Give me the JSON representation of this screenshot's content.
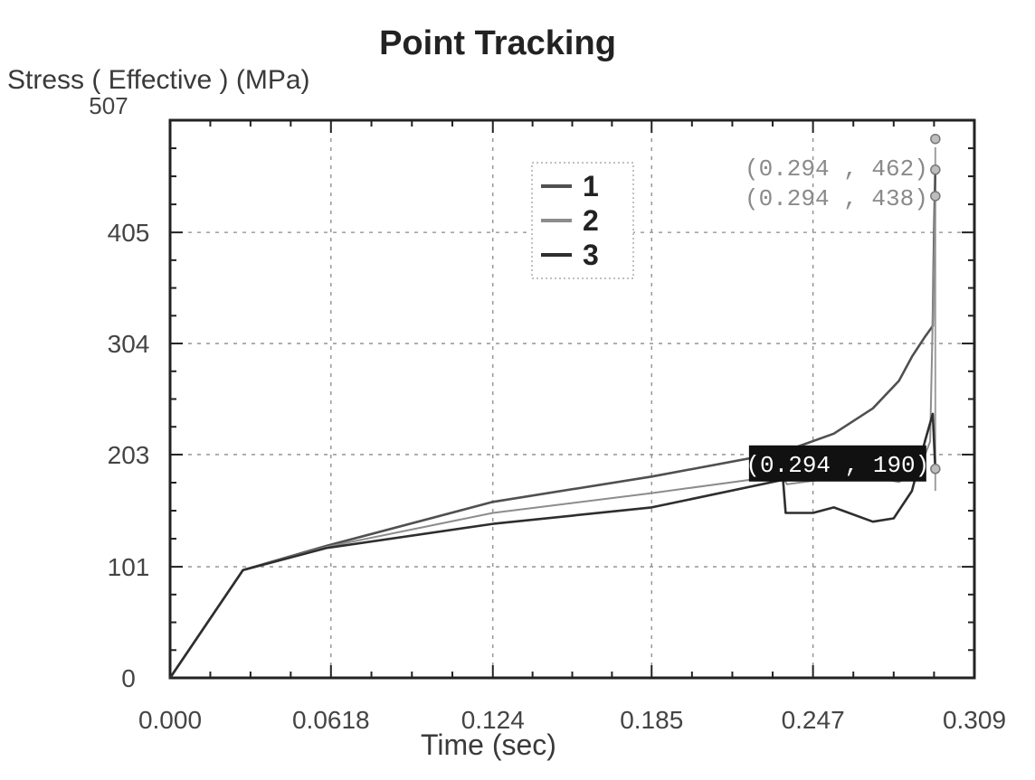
{
  "chart_data": {
    "type": "line",
    "title": "Point Tracking",
    "ylabel": "Stress ( Effective ) (MPa)",
    "xlabel": "Time (sec)",
    "xlim": [
      0.0,
      0.309
    ],
    "ylim": [
      0,
      507
    ],
    "x_ticks": [
      "0.000",
      "0.0618",
      "0.124",
      "0.185",
      "0.247",
      "0.309"
    ],
    "x_tick_values": [
      0.0,
      0.0618,
      0.124,
      0.185,
      0.247,
      0.309
    ],
    "y_ticks": [
      "0",
      "101",
      "203",
      "304",
      "405",
      "507"
    ],
    "y_tick_values": [
      0,
      101,
      203,
      304,
      405,
      507
    ],
    "grid": true,
    "legend_position": "top-center",
    "series": [
      {
        "name": "1",
        "color": "#505050",
        "x": [
          0.0,
          0.028,
          0.06,
          0.124,
          0.185,
          0.235,
          0.255,
          0.27,
          0.28,
          0.285,
          0.29,
          0.293,
          0.2935,
          0.294
        ],
        "y": [
          0,
          98,
          120,
          160,
          183,
          205,
          222,
          245,
          270,
          292,
          310,
          320,
          400,
          462
        ]
      },
      {
        "name": "2",
        "color": "#8c8c8c",
        "x": [
          0.0,
          0.028,
          0.06,
          0.124,
          0.185,
          0.235,
          0.237,
          0.25,
          0.27,
          0.28,
          0.288,
          0.292,
          0.294
        ],
        "y": [
          0,
          98,
          119,
          150,
          168,
          184,
          176,
          180,
          183,
          178,
          190,
          215,
          438
        ]
      },
      {
        "name": "3",
        "color": "#2e2e2e",
        "x": [
          0.0,
          0.028,
          0.06,
          0.124,
          0.185,
          0.2355,
          0.2365,
          0.247,
          0.255,
          0.27,
          0.278,
          0.285,
          0.29,
          0.293,
          0.294
        ],
        "y": [
          0,
          98,
          118,
          140,
          155,
          180,
          150,
          150,
          155,
          142,
          145,
          170,
          215,
          240,
          190
        ]
      }
    ],
    "annotations": [
      {
        "label": "(0.294 , 462)",
        "x": 0.294,
        "y": 462,
        "style": "plain"
      },
      {
        "label": "(0.294 , 438)",
        "x": 0.294,
        "y": 438,
        "style": "plain"
      },
      {
        "label": "(0.294 , 190)",
        "x": 0.294,
        "y": 190,
        "style": "highlight"
      }
    ]
  }
}
